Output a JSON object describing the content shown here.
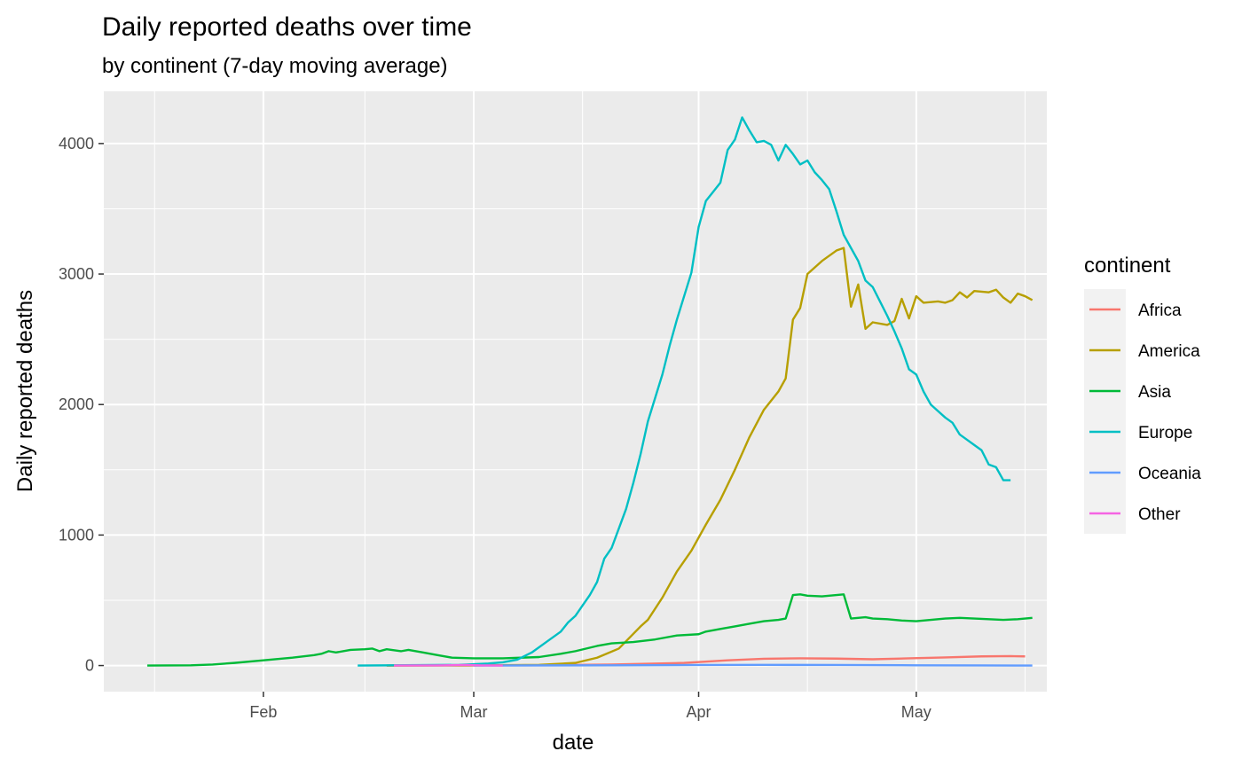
{
  "chart_data": {
    "type": "line",
    "title": "Daily reported deaths over time",
    "subtitle": "by continent (7-day moving average)",
    "xlabel": "date",
    "ylabel": "Daily reported deaths",
    "x_range": [
      "2020-01-10",
      "2020-05-19"
    ],
    "ylim": [
      -200,
      4400
    ],
    "x_ticks": [
      {
        "date": "2020-02-01",
        "label": "Feb"
      },
      {
        "date": "2020-03-01",
        "label": "Mar"
      },
      {
        "date": "2020-04-01",
        "label": "Apr"
      },
      {
        "date": "2020-05-01",
        "label": "May"
      }
    ],
    "y_ticks": [
      0,
      1000,
      2000,
      3000,
      4000
    ],
    "grid": true,
    "legend": {
      "title": "continent",
      "position": "right"
    },
    "series": [
      {
        "name": "Africa",
        "color": "#F8766D",
        "points": [
          [
            "2020-02-18",
            0
          ],
          [
            "2020-03-01",
            1
          ],
          [
            "2020-03-10",
            2
          ],
          [
            "2020-03-20",
            8
          ],
          [
            "2020-03-30",
            20
          ],
          [
            "2020-04-05",
            40
          ],
          [
            "2020-04-10",
            52
          ],
          [
            "2020-04-15",
            55
          ],
          [
            "2020-04-20",
            53
          ],
          [
            "2020-04-25",
            48
          ],
          [
            "2020-04-30",
            55
          ],
          [
            "2020-05-05",
            62
          ],
          [
            "2020-05-10",
            70
          ],
          [
            "2020-05-14",
            72
          ],
          [
            "2020-05-16",
            70
          ]
        ]
      },
      {
        "name": "America",
        "color": "#B79F00",
        "points": [
          [
            "2020-02-18",
            0
          ],
          [
            "2020-03-01",
            1
          ],
          [
            "2020-03-10",
            5
          ],
          [
            "2020-03-15",
            20
          ],
          [
            "2020-03-18",
            60
          ],
          [
            "2020-03-21",
            130
          ],
          [
            "2020-03-24",
            300
          ],
          [
            "2020-03-25",
            350
          ],
          [
            "2020-03-27",
            520
          ],
          [
            "2020-03-29",
            720
          ],
          [
            "2020-03-31",
            880
          ],
          [
            "2020-04-02",
            1080
          ],
          [
            "2020-04-04",
            1270
          ],
          [
            "2020-04-06",
            1500
          ],
          [
            "2020-04-08",
            1750
          ],
          [
            "2020-04-10",
            1960
          ],
          [
            "2020-04-12",
            2100
          ],
          [
            "2020-04-13",
            2200
          ],
          [
            "2020-04-14",
            2650
          ],
          [
            "2020-04-15",
            2740
          ],
          [
            "2020-04-16",
            3000
          ],
          [
            "2020-04-18",
            3100
          ],
          [
            "2020-04-20",
            3180
          ],
          [
            "2020-04-21",
            3200
          ],
          [
            "2020-04-22",
            2750
          ],
          [
            "2020-04-23",
            2920
          ],
          [
            "2020-04-24",
            2580
          ],
          [
            "2020-04-25",
            2630
          ],
          [
            "2020-04-27",
            2610
          ],
          [
            "2020-04-28",
            2640
          ],
          [
            "2020-04-29",
            2810
          ],
          [
            "2020-04-30",
            2660
          ],
          [
            "2020-05-01",
            2830
          ],
          [
            "2020-05-02",
            2780
          ],
          [
            "2020-05-04",
            2790
          ],
          [
            "2020-05-05",
            2780
          ],
          [
            "2020-05-06",
            2800
          ],
          [
            "2020-05-07",
            2860
          ],
          [
            "2020-05-08",
            2820
          ],
          [
            "2020-05-09",
            2870
          ],
          [
            "2020-05-11",
            2860
          ],
          [
            "2020-05-12",
            2880
          ],
          [
            "2020-05-13",
            2820
          ],
          [
            "2020-05-14",
            2780
          ],
          [
            "2020-05-15",
            2850
          ],
          [
            "2020-05-16",
            2830
          ],
          [
            "2020-05-17",
            2800
          ]
        ]
      },
      {
        "name": "Asia",
        "color": "#00BA38",
        "points": [
          [
            "2020-01-16",
            0
          ],
          [
            "2020-01-22",
            2
          ],
          [
            "2020-01-25",
            8
          ],
          [
            "2020-01-28",
            20
          ],
          [
            "2020-02-01",
            40
          ],
          [
            "2020-02-05",
            60
          ],
          [
            "2020-02-08",
            80
          ],
          [
            "2020-02-09",
            90
          ],
          [
            "2020-02-10",
            110
          ],
          [
            "2020-02-11",
            100
          ],
          [
            "2020-02-13",
            120
          ],
          [
            "2020-02-15",
            125
          ],
          [
            "2020-02-16",
            130
          ],
          [
            "2020-02-17",
            110
          ],
          [
            "2020-02-18",
            125
          ],
          [
            "2020-02-20",
            110
          ],
          [
            "2020-02-21",
            120
          ],
          [
            "2020-02-23",
            100
          ],
          [
            "2020-02-25",
            80
          ],
          [
            "2020-02-27",
            60
          ],
          [
            "2020-03-01",
            55
          ],
          [
            "2020-03-05",
            55
          ],
          [
            "2020-03-10",
            65
          ],
          [
            "2020-03-13",
            90
          ],
          [
            "2020-03-15",
            110
          ],
          [
            "2020-03-18",
            150
          ],
          [
            "2020-03-20",
            170
          ],
          [
            "2020-03-23",
            180
          ],
          [
            "2020-03-26",
            200
          ],
          [
            "2020-03-29",
            230
          ],
          [
            "2020-04-01",
            240
          ],
          [
            "2020-04-02",
            260
          ],
          [
            "2020-04-04",
            280
          ],
          [
            "2020-04-06",
            300
          ],
          [
            "2020-04-08",
            320
          ],
          [
            "2020-04-10",
            340
          ],
          [
            "2020-04-12",
            350
          ],
          [
            "2020-04-13",
            360
          ],
          [
            "2020-04-14",
            540
          ],
          [
            "2020-04-15",
            545
          ],
          [
            "2020-04-16",
            535
          ],
          [
            "2020-04-18",
            530
          ],
          [
            "2020-04-20",
            540
          ],
          [
            "2020-04-21",
            545
          ],
          [
            "2020-04-22",
            360
          ],
          [
            "2020-04-24",
            370
          ],
          [
            "2020-04-25",
            360
          ],
          [
            "2020-04-27",
            355
          ],
          [
            "2020-04-29",
            345
          ],
          [
            "2020-05-01",
            340
          ],
          [
            "2020-05-03",
            350
          ],
          [
            "2020-05-05",
            360
          ],
          [
            "2020-05-07",
            365
          ],
          [
            "2020-05-09",
            360
          ],
          [
            "2020-05-11",
            355
          ],
          [
            "2020-05-13",
            350
          ],
          [
            "2020-05-15",
            355
          ],
          [
            "2020-05-16",
            360
          ],
          [
            "2020-05-17",
            365
          ]
        ]
      },
      {
        "name": "Europe",
        "color": "#00BFC4",
        "points": [
          [
            "2020-02-14",
            0
          ],
          [
            "2020-02-28",
            5
          ],
          [
            "2020-03-03",
            15
          ],
          [
            "2020-03-05",
            25
          ],
          [
            "2020-03-07",
            45
          ],
          [
            "2020-03-09",
            100
          ],
          [
            "2020-03-11",
            180
          ],
          [
            "2020-03-13",
            260
          ],
          [
            "2020-03-14",
            330
          ],
          [
            "2020-03-15",
            380
          ],
          [
            "2020-03-16",
            460
          ],
          [
            "2020-03-17",
            540
          ],
          [
            "2020-03-18",
            640
          ],
          [
            "2020-03-19",
            820
          ],
          [
            "2020-03-20",
            900
          ],
          [
            "2020-03-21",
            1050
          ],
          [
            "2020-03-22",
            1200
          ],
          [
            "2020-03-23",
            1400
          ],
          [
            "2020-03-24",
            1620
          ],
          [
            "2020-03-25",
            1870
          ],
          [
            "2020-03-26",
            2050
          ],
          [
            "2020-03-27",
            2230
          ],
          [
            "2020-03-28",
            2450
          ],
          [
            "2020-03-29",
            2650
          ],
          [
            "2020-03-30",
            2830
          ],
          [
            "2020-03-31",
            3010
          ],
          [
            "2020-04-01",
            3360
          ],
          [
            "2020-04-02",
            3560
          ],
          [
            "2020-04-03",
            3630
          ],
          [
            "2020-04-04",
            3700
          ],
          [
            "2020-04-05",
            3950
          ],
          [
            "2020-04-06",
            4030
          ],
          [
            "2020-04-07",
            4200
          ],
          [
            "2020-04-08",
            4100
          ],
          [
            "2020-04-09",
            4010
          ],
          [
            "2020-04-10",
            4020
          ],
          [
            "2020-04-11",
            3990
          ],
          [
            "2020-04-12",
            3870
          ],
          [
            "2020-04-13",
            3990
          ],
          [
            "2020-04-14",
            3920
          ],
          [
            "2020-04-15",
            3840
          ],
          [
            "2020-04-16",
            3870
          ],
          [
            "2020-04-17",
            3780
          ],
          [
            "2020-04-18",
            3720
          ],
          [
            "2020-04-19",
            3650
          ],
          [
            "2020-04-20",
            3480
          ],
          [
            "2020-04-21",
            3300
          ],
          [
            "2020-04-22",
            3200
          ],
          [
            "2020-04-23",
            3100
          ],
          [
            "2020-04-24",
            2950
          ],
          [
            "2020-04-25",
            2900
          ],
          [
            "2020-04-26",
            2790
          ],
          [
            "2020-04-27",
            2680
          ],
          [
            "2020-04-28",
            2560
          ],
          [
            "2020-04-29",
            2430
          ],
          [
            "2020-04-30",
            2270
          ],
          [
            "2020-05-01",
            2230
          ],
          [
            "2020-05-02",
            2100
          ],
          [
            "2020-05-03",
            2000
          ],
          [
            "2020-05-04",
            1950
          ],
          [
            "2020-05-05",
            1900
          ],
          [
            "2020-05-06",
            1860
          ],
          [
            "2020-05-07",
            1770
          ],
          [
            "2020-05-08",
            1730
          ],
          [
            "2020-05-09",
            1690
          ],
          [
            "2020-05-10",
            1650
          ],
          [
            "2020-05-11",
            1540
          ],
          [
            "2020-05-12",
            1520
          ],
          [
            "2020-05-13",
            1420
          ],
          [
            "2020-05-14",
            1420
          ]
        ]
      },
      {
        "name": "Oceania",
        "color": "#619CFF",
        "points": [
          [
            "2020-03-01",
            0
          ],
          [
            "2020-03-20",
            2
          ],
          [
            "2020-04-01",
            4
          ],
          [
            "2020-04-10",
            5
          ],
          [
            "2020-04-20",
            4
          ],
          [
            "2020-05-01",
            2
          ],
          [
            "2020-05-10",
            1
          ],
          [
            "2020-05-17",
            0
          ]
        ]
      },
      {
        "name": "Other",
        "color": "#F564E3",
        "points": [
          [
            "2020-02-19",
            0
          ],
          [
            "2020-02-25",
            1
          ],
          [
            "2020-02-29",
            4
          ],
          [
            "2020-03-02",
            1
          ],
          [
            "2020-03-05",
            0
          ]
        ]
      }
    ]
  }
}
